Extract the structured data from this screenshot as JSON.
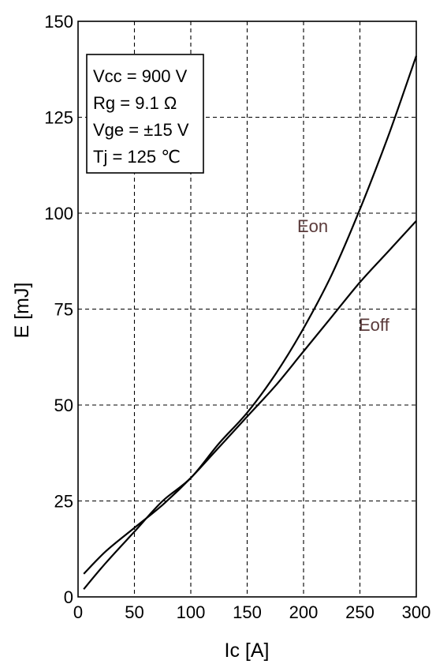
{
  "chart_data": {
    "type": "line",
    "xlabel": "Ic [A]",
    "ylabel": "E [mJ]",
    "xlim": [
      0,
      300
    ],
    "ylim": [
      0,
      150
    ],
    "xticks": [
      0,
      50,
      100,
      150,
      200,
      250,
      300
    ],
    "yticks": [
      0,
      25,
      50,
      75,
      100,
      125,
      150
    ],
    "grid": true,
    "conditions": [
      "Vcc = 900 V",
      "Rg = 9.1 Ω",
      "Vge = ±15 V",
      "Tj = 125 ℃"
    ],
    "series": [
      {
        "name": "Eon",
        "color": "#000000",
        "x": [
          5,
          25,
          50,
          75,
          100,
          125,
          150,
          175,
          200,
          225,
          250,
          275,
          300
        ],
        "y": [
          2,
          9,
          17,
          25,
          31,
          40,
          48,
          58,
          70,
          84,
          101,
          120,
          141
        ]
      },
      {
        "name": "Eoff",
        "color": "#000000",
        "x": [
          5,
          25,
          50,
          75,
          100,
          125,
          150,
          175,
          200,
          225,
          250,
          275,
          300
        ],
        "y": [
          6,
          12,
          18,
          24,
          31,
          39,
          47,
          55,
          64,
          73,
          82,
          90,
          98
        ]
      }
    ]
  }
}
